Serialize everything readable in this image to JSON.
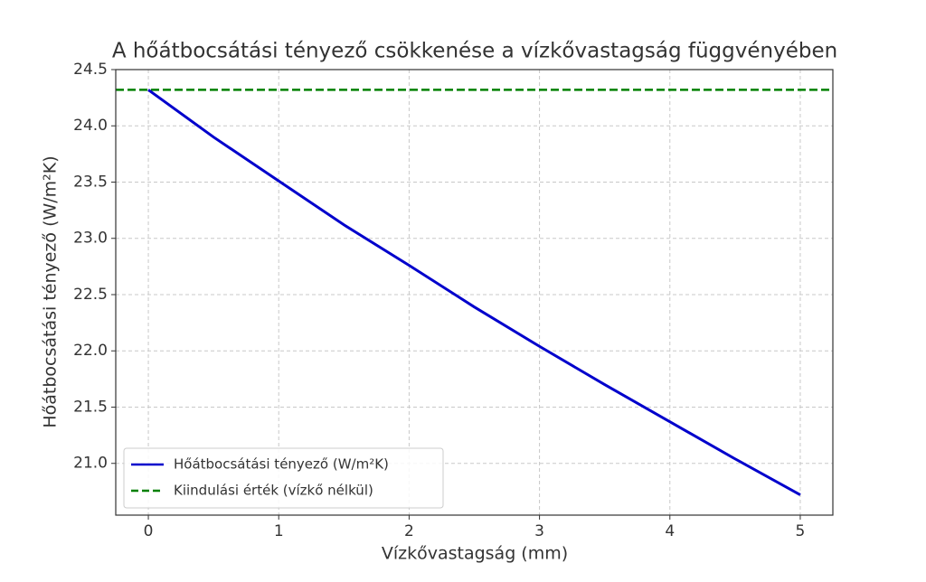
{
  "chart_data": {
    "type": "line",
    "title": "A hőátbocsátási tényező csökkenése a vízkővastagság függvényében",
    "x_label": "Vízkővastagság (mm)",
    "y_label": "Hőátbocsátási tényező (W/m²K)",
    "x": [
      0,
      0.5,
      1,
      1.5,
      2,
      2.5,
      3,
      3.5,
      4,
      4.5,
      5
    ],
    "series": [
      {
        "name": "Hőátbocsátási tényező (W/m²K)",
        "color": "#0000cc",
        "values": [
          24.32,
          23.9,
          23.51,
          23.12,
          22.76,
          22.39,
          22.04,
          21.7,
          21.37,
          21.04,
          20.72
        ]
      }
    ],
    "reference_line": {
      "name": "Kiindulási érték (vízkő nélkül)",
      "color": "#008000",
      "value": 24.32
    },
    "xlim": [
      -0.25,
      5.25
    ],
    "xticks": [
      0,
      1,
      2,
      3,
      4,
      5
    ],
    "ylim": [
      20.54,
      24.5
    ],
    "yticks": [
      {
        "value": 21,
        "label": "21.0"
      },
      21.5,
      {
        "value": 22,
        "label": "22.0"
      },
      22.5,
      {
        "value": 23,
        "label": "23.0"
      },
      23.5,
      {
        "value": 24,
        "label": "24.0"
      },
      24.5
    ],
    "grid": true,
    "legend": "lower left"
  }
}
